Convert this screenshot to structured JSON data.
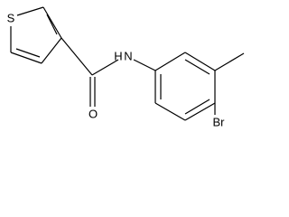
{
  "atoms": {
    "sulfur": "S",
    "oxygen": "O",
    "hydrogen": "H",
    "nitrogen": "N",
    "bromine": "Br"
  }
}
